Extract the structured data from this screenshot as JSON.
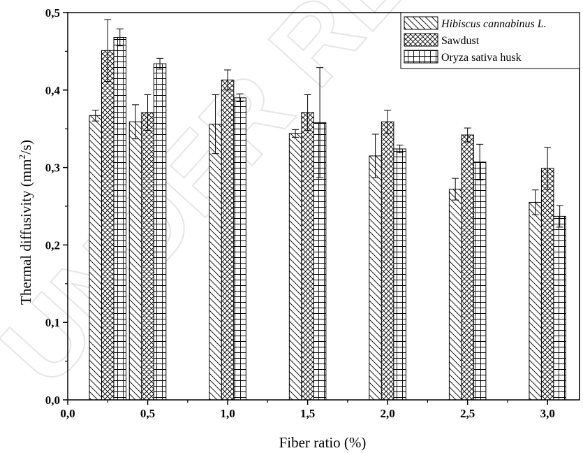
{
  "chart_data": {
    "type": "bar",
    "categories": [
      "0,0",
      "0,5",
      "1,0",
      "1,5",
      "2,0",
      "2,5",
      "3,0"
    ],
    "x": [
      0.25,
      0.5,
      1.0,
      1.5,
      2.0,
      2.5,
      3.0
    ],
    "series": [
      {
        "name": "Hibiscus cannabinus L.",
        "pattern": "diagonal-hatch",
        "values": [
          0.367,
          0.359,
          0.356,
          0.344,
          0.315,
          0.272,
          0.255
        ],
        "errors": [
          0.007,
          0.022,
          0.038,
          0.005,
          0.028,
          0.014,
          0.016
        ]
      },
      {
        "name": "Sawdust",
        "pattern": "crosshatch",
        "values": [
          0.451,
          0.371,
          0.413,
          0.371,
          0.359,
          0.342,
          0.299
        ],
        "errors": [
          0.04,
          0.023,
          0.013,
          0.023,
          0.015,
          0.009,
          0.027
        ]
      },
      {
        "name": "Oryza sativa husk",
        "pattern": "grid",
        "values": [
          0.468,
          0.434,
          0.39,
          0.358,
          0.324,
          0.307,
          0.237
        ],
        "errors": [
          0.011,
          0.007,
          0.005,
          0.071,
          0.005,
          0.023,
          0.014
        ]
      }
    ],
    "xlabel": "Fiber ratio (%)",
    "ylabel": "Thermal diffusivity (mm²/s)",
    "ylabel_parts": {
      "main": "Thermal diffusivity (mm",
      "sup": "2",
      "tail": "/s)"
    },
    "xlim": [
      0.0,
      3.2
    ],
    "ylim": [
      0.0,
      0.5
    ],
    "x_ticks": [
      {
        "v": 0.0,
        "label": "0,0"
      },
      {
        "v": 0.5,
        "label": "0,5"
      },
      {
        "v": 1.0,
        "label": "1,0"
      },
      {
        "v": 1.5,
        "label": "1,5"
      },
      {
        "v": 2.0,
        "label": "2,0"
      },
      {
        "v": 2.5,
        "label": "2,5"
      },
      {
        "v": 3.0,
        "label": "3,0"
      }
    ],
    "y_ticks": [
      {
        "v": 0.0,
        "label": "0,0"
      },
      {
        "v": 0.1,
        "label": "0,1"
      },
      {
        "v": 0.2,
        "label": "0,2"
      },
      {
        "v": 0.3,
        "label": "0,3"
      },
      {
        "v": 0.4,
        "label": "0,4"
      },
      {
        "v": 0.5,
        "label": "0,5"
      }
    ],
    "grid": false,
    "legend_position": "top-right"
  },
  "watermark": "UNDER REVIEW"
}
